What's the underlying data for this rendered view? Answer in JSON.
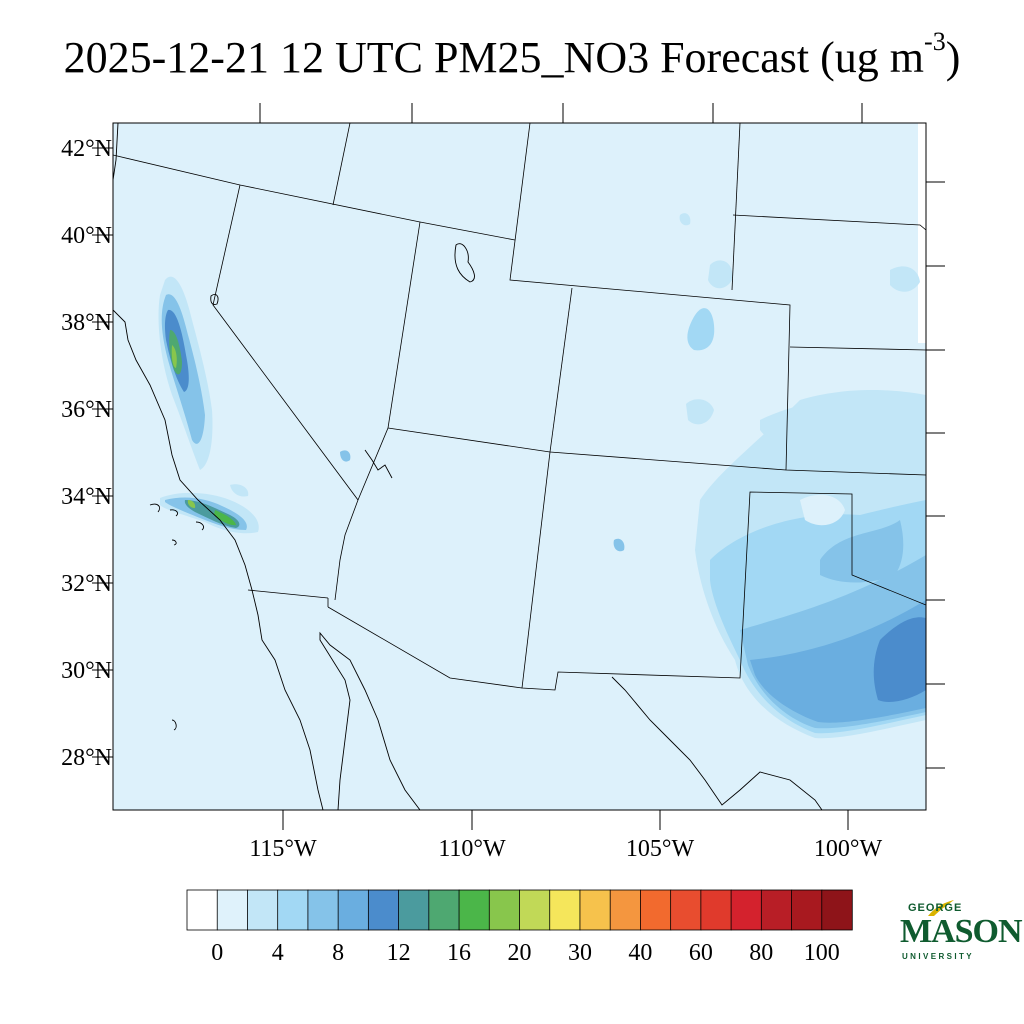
{
  "title": {
    "main": "2025-12-21 12 UTC PM25_NO3 Forecast (ug m",
    "superscript": "-3",
    "close": ")"
  },
  "map": {
    "latitude_labels": [
      "42°N",
      "40°N",
      "38°N",
      "36°N",
      "34°N",
      "32°N",
      "30°N",
      "28°N"
    ],
    "latitude_values": [
      42,
      40,
      38,
      36,
      34,
      32,
      30,
      28
    ],
    "longitude_labels": [
      "115°W",
      "110°W",
      "105°W",
      "100°W"
    ],
    "longitude_values": [
      -115,
      -110,
      -105,
      -100
    ],
    "background_color": "#ddf1fb",
    "border_color": "#000000",
    "features": [
      {
        "name": "Central Valley CA hotspot",
        "level_range": "4-18"
      },
      {
        "name": "Los Angeles basin hotspot",
        "level_range": "4-18"
      },
      {
        "name": "Texas / Oklahoma plume",
        "level_range": "2-12"
      },
      {
        "name": "Colorado Front Range patch",
        "level_range": "2-6"
      }
    ]
  },
  "colorbar": {
    "labels": [
      "0",
      "4",
      "8",
      "12",
      "16",
      "20",
      "30",
      "40",
      "60",
      "80",
      "100"
    ],
    "colors": [
      "#ffffff",
      "#dff2fb",
      "#c2e6f7",
      "#a2d8f4",
      "#85c3e9",
      "#6aaee0",
      "#4b8ccc",
      "#4b9b9e",
      "#4ea871",
      "#4bb649",
      "#88c64c",
      "#c1d957",
      "#f5e65b",
      "#f6c24c",
      "#f4963f",
      "#f26a2e",
      "#e84d2f",
      "#e03a2c",
      "#d4222d",
      "#b81e26",
      "#a8191f",
      "#8e1419"
    ]
  },
  "logo": {
    "line1": "GEORGE",
    "line2": "MASON",
    "line3": "UNIVERSITY",
    "color": "#0f5b2f",
    "accent_color": "#d9b300"
  }
}
